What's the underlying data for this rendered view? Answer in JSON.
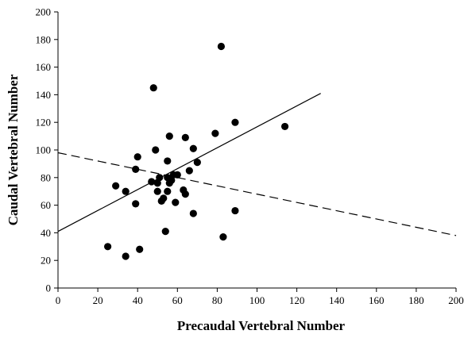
{
  "chart_data": {
    "type": "scatter",
    "title": "",
    "xlabel": "Precaudal Vertebral Number",
    "ylabel": "Caudal Vertebral Number",
    "xlim": [
      0,
      200
    ],
    "ylim": [
      0,
      200
    ],
    "xticks": [
      "0",
      "20",
      "40",
      "60",
      "80",
      "100",
      "120",
      "140",
      "160",
      "180",
      "200"
    ],
    "yticks": [
      "0",
      "20",
      "40",
      "60",
      "80",
      "100",
      "120",
      "140",
      "160",
      "180",
      "200"
    ],
    "grid": false,
    "legend": "none",
    "points": [
      {
        "x": 25,
        "y": 30
      },
      {
        "x": 29,
        "y": 74
      },
      {
        "x": 34,
        "y": 23
      },
      {
        "x": 34,
        "y": 70
      },
      {
        "x": 39,
        "y": 86
      },
      {
        "x": 39,
        "y": 61
      },
      {
        "x": 40,
        "y": 95
      },
      {
        "x": 41,
        "y": 28
      },
      {
        "x": 47,
        "y": 77
      },
      {
        "x": 48,
        "y": 145
      },
      {
        "x": 49,
        "y": 100
      },
      {
        "x": 50,
        "y": 70
      },
      {
        "x": 50,
        "y": 76
      },
      {
        "x": 51,
        "y": 80
      },
      {
        "x": 52,
        "y": 63
      },
      {
        "x": 53,
        "y": 65
      },
      {
        "x": 54,
        "y": 41
      },
      {
        "x": 55,
        "y": 92
      },
      {
        "x": 55,
        "y": 80
      },
      {
        "x": 55,
        "y": 70
      },
      {
        "x": 56,
        "y": 110
      },
      {
        "x": 56,
        "y": 76
      },
      {
        "x": 57,
        "y": 78
      },
      {
        "x": 58,
        "y": 82
      },
      {
        "x": 59,
        "y": 62
      },
      {
        "x": 60,
        "y": 82
      },
      {
        "x": 63,
        "y": 71
      },
      {
        "x": 64,
        "y": 68
      },
      {
        "x": 64,
        "y": 109
      },
      {
        "x": 66,
        "y": 85
      },
      {
        "x": 68,
        "y": 54
      },
      {
        "x": 68,
        "y": 101
      },
      {
        "x": 70,
        "y": 91
      },
      {
        "x": 79,
        "y": 112
      },
      {
        "x": 82,
        "y": 175
      },
      {
        "x": 83,
        "y": 37
      },
      {
        "x": 89,
        "y": 120
      },
      {
        "x": 89,
        "y": 56
      },
      {
        "x": 114,
        "y": 117
      }
    ],
    "lines": [
      {
        "style": "solid",
        "color": "#000000",
        "x": [
          0,
          132
        ],
        "y": [
          41,
          141
        ]
      },
      {
        "style": "dashed",
        "color": "#000000",
        "x": [
          0,
          200
        ],
        "y": [
          98,
          38
        ]
      }
    ]
  }
}
